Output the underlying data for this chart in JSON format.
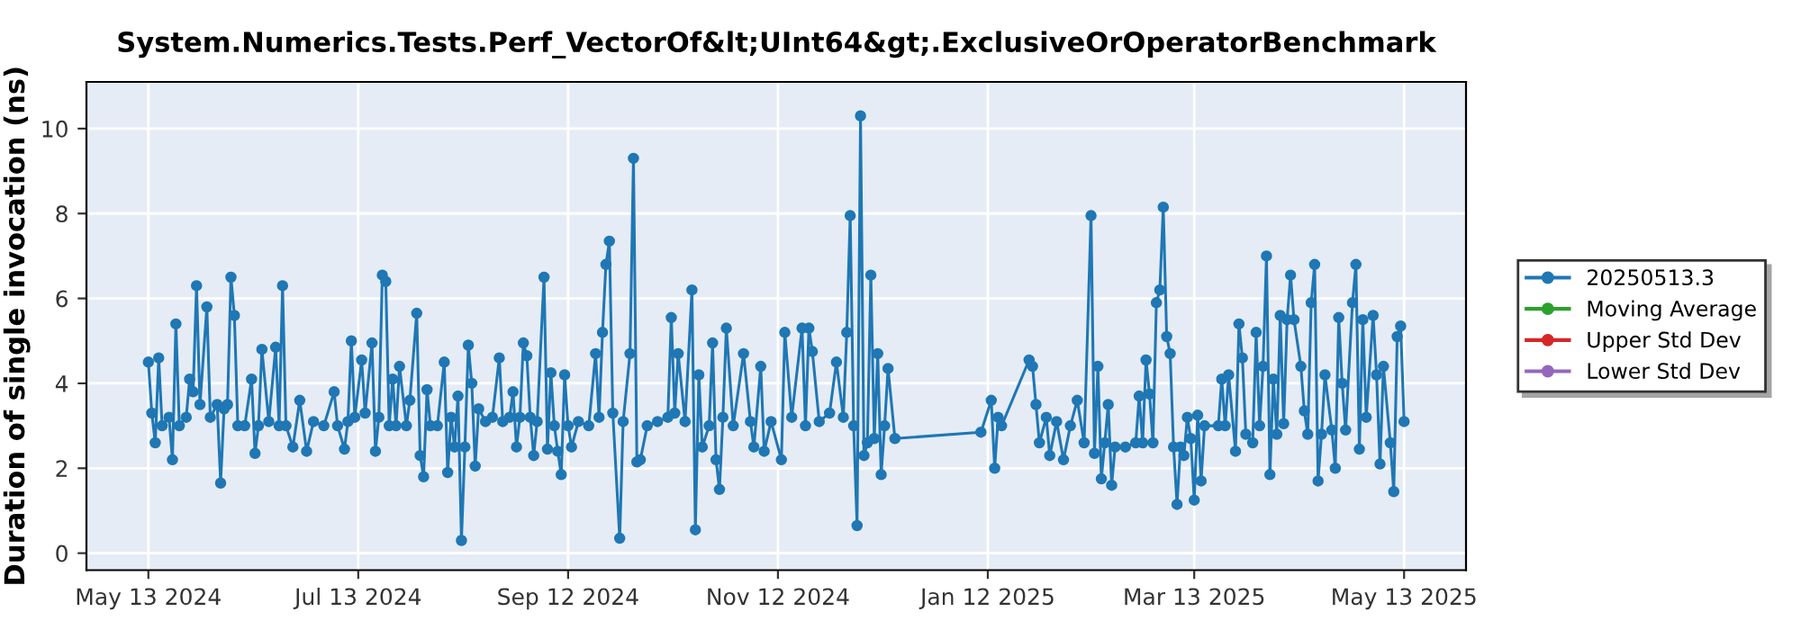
{
  "chart_data": {
    "type": "line",
    "title": "System.Numerics.Tests.Perf_VectorOf&lt;UInt64&gt;.ExclusiveOrOperatorBenchmark",
    "ylabel": "Duration of single invocation (ns)",
    "xlim": [
      "2024-04-25",
      "2025-05-31"
    ],
    "ylim": [
      -0.4,
      11.1
    ],
    "xticks": [
      {
        "value": "2024-05-13",
        "label": "May 13 2024"
      },
      {
        "value": "2024-07-13",
        "label": "Jul 13 2024"
      },
      {
        "value": "2024-09-12",
        "label": "Sep 12 2024"
      },
      {
        "value": "2024-11-12",
        "label": "Nov 12 2024"
      },
      {
        "value": "2025-01-12",
        "label": "Jan 12 2025"
      },
      {
        "value": "2025-03-13",
        "label": "Mar 13 2025"
      },
      {
        "value": "2025-05-13",
        "label": "May 13 2025"
      }
    ],
    "yticks": [
      0,
      2,
      4,
      6,
      8,
      10
    ],
    "grid": true,
    "legend": "right",
    "marker": "circle",
    "line_style": "solid",
    "series": [
      {
        "name": "20250513.3",
        "color": "#1f77b4",
        "x": [
          "2024-05-13",
          "2024-05-14",
          "2024-05-15",
          "2024-05-16",
          "2024-05-17",
          "2024-05-19",
          "2024-05-20",
          "2024-05-21",
          "2024-05-22",
          "2024-05-24",
          "2024-05-25",
          "2024-05-26",
          "2024-05-27",
          "2024-05-28",
          "2024-05-30",
          "2024-05-31",
          "2024-06-02",
          "2024-06-03",
          "2024-06-04",
          "2024-06-05",
          "2024-06-06",
          "2024-06-07",
          "2024-06-08",
          "2024-06-10",
          "2024-06-12",
          "2024-06-13",
          "2024-06-14",
          "2024-06-15",
          "2024-06-17",
          "2024-06-19",
          "2024-06-20",
          "2024-06-21",
          "2024-06-22",
          "2024-06-24",
          "2024-06-26",
          "2024-06-28",
          "2024-06-30",
          "2024-07-03",
          "2024-07-06",
          "2024-07-07",
          "2024-07-09",
          "2024-07-10",
          "2024-07-11",
          "2024-07-12",
          "2024-07-14",
          "2024-07-15",
          "2024-07-17",
          "2024-07-18",
          "2024-07-19",
          "2024-07-20",
          "2024-07-21",
          "2024-07-22",
          "2024-07-23",
          "2024-07-24",
          "2024-07-25",
          "2024-07-27",
          "2024-07-28",
          "2024-07-30",
          "2024-07-31",
          "2024-08-01",
          "2024-08-02",
          "2024-08-03",
          "2024-08-05",
          "2024-08-07",
          "2024-08-08",
          "2024-08-09",
          "2024-08-10",
          "2024-08-11",
          "2024-08-12",
          "2024-08-13",
          "2024-08-14",
          "2024-08-15",
          "2024-08-16",
          "2024-08-17",
          "2024-08-19",
          "2024-08-21",
          "2024-08-23",
          "2024-08-24",
          "2024-08-26",
          "2024-08-27",
          "2024-08-28",
          "2024-08-29",
          "2024-08-30",
          "2024-08-31",
          "2024-09-01",
          "2024-09-02",
          "2024-09-03",
          "2024-09-05",
          "2024-09-06",
          "2024-09-07",
          "2024-09-08",
          "2024-09-09",
          "2024-09-10",
          "2024-09-11",
          "2024-09-12",
          "2024-09-13",
          "2024-09-15",
          "2024-09-18",
          "2024-09-20",
          "2024-09-21",
          "2024-09-22",
          "2024-09-23",
          "2024-09-24",
          "2024-09-25",
          "2024-09-27",
          "2024-09-28",
          "2024-09-30",
          "2024-10-01",
          "2024-10-02",
          "2024-10-03",
          "2024-10-05",
          "2024-10-08",
          "2024-10-11",
          "2024-10-12",
          "2024-10-13",
          "2024-10-14",
          "2024-10-16",
          "2024-10-18",
          "2024-10-19",
          "2024-10-20",
          "2024-10-21",
          "2024-10-23",
          "2024-10-24",
          "2024-10-25",
          "2024-10-26",
          "2024-10-27",
          "2024-10-28",
          "2024-10-30",
          "2024-11-02",
          "2024-11-04",
          "2024-11-05",
          "2024-11-07",
          "2024-11-08",
          "2024-11-10",
          "2024-11-13",
          "2024-11-14",
          "2024-11-16",
          "2024-11-19",
          "2024-11-20",
          "2024-11-21",
          "2024-11-22",
          "2024-11-24",
          "2024-11-27",
          "2024-11-29",
          "2024-12-01",
          "2024-12-02",
          "2024-12-03",
          "2024-12-04",
          "2024-12-05",
          "2024-12-06",
          "2024-12-07",
          "2024-12-08",
          "2024-12-09",
          "2024-12-10",
          "2024-12-11",
          "2024-12-12",
          "2024-12-13",
          "2024-12-14",
          "2024-12-16",
          "2025-01-10",
          "2025-01-13",
          "2025-01-14",
          "2025-01-15",
          "2025-01-16",
          "2025-01-24",
          "2025-01-25",
          "2025-01-26",
          "2025-01-27",
          "2025-01-29",
          "2025-01-30",
          "2025-02-01",
          "2025-02-03",
          "2025-02-05",
          "2025-02-07",
          "2025-02-09",
          "2025-02-11",
          "2025-02-12",
          "2025-02-13",
          "2025-02-14",
          "2025-02-15",
          "2025-02-16",
          "2025-02-17",
          "2025-02-18",
          "2025-02-21",
          "2025-02-24",
          "2025-02-25",
          "2025-02-26",
          "2025-02-27",
          "2025-02-28",
          "2025-03-01",
          "2025-03-02",
          "2025-03-03",
          "2025-03-04",
          "2025-03-05",
          "2025-03-06",
          "2025-03-07",
          "2025-03-08",
          "2025-03-09",
          "2025-03-10",
          "2025-03-11",
          "2025-03-12",
          "2025-03-13",
          "2025-03-14",
          "2025-03-15",
          "2025-03-16",
          "2025-03-20",
          "2025-03-21",
          "2025-03-22",
          "2025-03-23",
          "2025-03-25",
          "2025-03-26",
          "2025-03-27",
          "2025-03-28",
          "2025-03-30",
          "2025-03-31",
          "2025-04-01",
          "2025-04-02",
          "2025-04-03",
          "2025-04-04",
          "2025-04-05",
          "2025-04-06",
          "2025-04-07",
          "2025-04-08",
          "2025-04-09",
          "2025-04-10",
          "2025-04-11",
          "2025-04-13",
          "2025-04-14",
          "2025-04-15",
          "2025-04-16",
          "2025-04-17",
          "2025-04-18",
          "2025-04-19",
          "2025-04-20",
          "2025-04-22",
          "2025-04-23",
          "2025-04-24",
          "2025-04-25",
          "2025-04-26",
          "2025-04-28",
          "2025-04-29",
          "2025-04-30",
          "2025-05-01",
          "2025-05-02",
          "2025-05-04",
          "2025-05-05",
          "2025-05-06",
          "2025-05-07",
          "2025-05-09",
          "2025-05-10",
          "2025-05-11",
          "2025-05-12",
          "2025-05-13"
        ],
        "values": [
          4.5,
          3.3,
          2.6,
          4.6,
          3.0,
          3.2,
          2.2,
          5.4,
          3.0,
          3.2,
          4.1,
          3.8,
          6.3,
          3.5,
          5.8,
          3.2,
          3.5,
          1.65,
          3.4,
          3.5,
          6.5,
          5.6,
          3.0,
          3.0,
          4.1,
          2.35,
          3.0,
          4.8,
          3.1,
          4.85,
          3.0,
          6.3,
          3.0,
          2.5,
          3.6,
          2.4,
          3.1,
          3.0,
          3.8,
          3.0,
          2.45,
          3.1,
          5.0,
          3.2,
          4.55,
          3.3,
          4.95,
          2.4,
          3.2,
          6.55,
          6.4,
          3.0,
          4.1,
          3.0,
          4.4,
          3.0,
          3.6,
          5.65,
          2.3,
          1.8,
          3.85,
          3.0,
          3.0,
          4.5,
          1.9,
          3.2,
          2.5,
          3.7,
          0.3,
          2.5,
          4.9,
          4.0,
          2.05,
          3.4,
          3.1,
          3.2,
          4.6,
          3.1,
          3.2,
          3.8,
          2.5,
          3.2,
          4.95,
          4.65,
          3.2,
          2.3,
          3.1,
          6.5,
          2.45,
          4.25,
          3.0,
          2.4,
          1.85,
          4.2,
          3.0,
          2.5,
          3.1,
          3.0,
          4.7,
          3.2,
          5.2,
          6.8,
          7.35,
          3.3,
          0.35,
          3.1,
          4.7,
          9.3,
          2.15,
          2.2,
          3.0,
          3.1,
          3.2,
          5.55,
          3.3,
          4.7,
          3.1,
          6.2,
          0.55,
          4.2,
          2.5,
          3.0,
          4.95,
          2.2,
          1.5,
          3.2,
          5.3,
          3.0,
          4.7,
          3.1,
          2.5,
          4.4,
          2.4,
          3.1,
          2.2,
          5.2,
          3.2,
          5.3,
          3.0,
          5.3,
          4.75,
          3.1,
          3.3,
          4.5,
          3.2,
          5.2,
          7.95,
          3.0,
          0.65,
          10.3,
          2.3,
          2.6,
          6.55,
          2.7,
          4.7,
          1.85,
          3.0,
          4.35,
          2.7,
          2.85,
          3.6,
          2.0,
          3.2,
          3.0,
          4.55,
          4.4,
          3.5,
          2.6,
          3.2,
          2.3,
          3.1,
          2.2,
          3.0,
          3.6,
          2.6,
          7.95,
          2.35,
          4.4,
          1.75,
          2.6,
          3.5,
          1.6,
          2.5,
          2.5,
          2.6,
          3.7,
          2.6,
          4.55,
          3.75,
          2.6,
          5.9,
          6.2,
          8.15,
          5.1,
          4.7,
          2.5,
          1.15,
          2.5,
          2.3,
          3.2,
          2.7,
          1.25,
          3.25,
          1.7,
          3.0,
          3.0,
          4.1,
          3.0,
          4.2,
          2.4,
          5.4,
          4.6,
          2.8,
          2.6,
          5.2,
          3.0,
          4.4,
          7.0,
          1.85,
          4.1,
          2.8,
          5.6,
          3.05,
          5.5,
          6.55,
          5.5,
          4.4,
          3.35,
          2.8,
          5.9,
          6.8,
          1.7,
          2.8,
          4.2,
          2.9,
          2.0,
          5.55,
          4.0,
          2.9,
          5.9,
          6.8,
          2.45,
          5.5,
          3.2,
          5.6,
          4.2,
          2.1,
          4.4,
          2.6,
          1.45,
          5.1,
          5.35,
          3.1
        ]
      },
      {
        "name": "Moving Average",
        "color": "#2ca02c"
      },
      {
        "name": "Upper Std Dev",
        "color": "#d62728"
      },
      {
        "name": "Lower Std Dev",
        "color": "#9467bd"
      }
    ]
  }
}
